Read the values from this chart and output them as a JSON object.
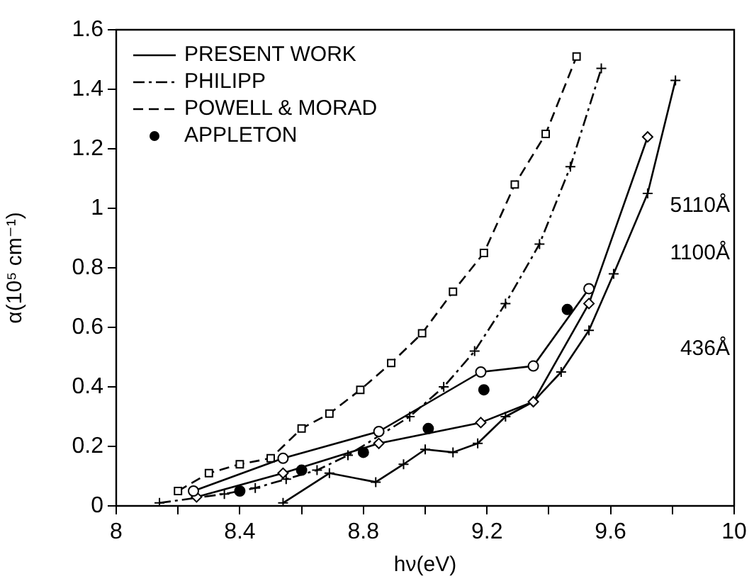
{
  "chart_data": {
    "type": "line",
    "xlabel": "hν(eV)",
    "ylabel": "α(10⁵ cm⁻¹)",
    "xlim": [
      8,
      10
    ],
    "ylim": [
      0,
      1.6
    ],
    "xticks": [
      8,
      {
        "value": 8.2,
        "label": null
      },
      8.4,
      {
        "value": 8.6,
        "label": null
      },
      8.8,
      {
        "value": 9,
        "label": null
      },
      9.2,
      {
        "value": 9.4,
        "label": null
      },
      9.6,
      {
        "value": 9.8,
        "label": null
      },
      10
    ],
    "yticks": [
      0,
      0.2,
      0.4,
      0.6,
      0.8,
      1.0,
      1.2,
      1.4,
      1.6
    ],
    "grid": false,
    "legend": "top left",
    "series": [
      {
        "name": "PRESENT WORK",
        "type": "line",
        "color": "#000000",
        "marker": "circle",
        "line_style": "solid",
        "x": [
          8.25,
          8.54,
          8.85,
          9.18,
          9.35,
          9.53
        ],
        "values": [
          0.05,
          0.16,
          0.25,
          0.45,
          0.47,
          0.73
        ]
      },
      {
        "type": "line",
        "color": "#000000",
        "marker": "diamond",
        "line_style": "solid",
        "x": [
          8.26,
          8.54,
          8.85,
          9.18,
          9.35,
          9.53,
          9.72
        ],
        "values": [
          0.03,
          0.11,
          0.21,
          0.28,
          0.35,
          0.68,
          1.24
        ]
      },
      {
        "type": "line",
        "color": "#000000",
        "marker": "cross",
        "line_style": "solid",
        "x": [
          8.54,
          8.69,
          8.84,
          8.93,
          9.0,
          9.09,
          9.17,
          9.26,
          9.35,
          9.44,
          9.53,
          9.61,
          9.72,
          9.81
        ],
        "values": [
          0.01,
          0.11,
          0.08,
          0.14,
          0.19,
          0.18,
          0.21,
          0.3,
          0.35,
          0.45,
          0.59,
          0.78,
          1.05,
          1.43
        ]
      },
      {
        "name": "PHILIPP",
        "type": "line",
        "color": "#000000",
        "marker": "cross",
        "line_style": "dashdot",
        "x": [
          8.14,
          8.35,
          8.45,
          8.55,
          8.65,
          8.75,
          8.95,
          9.06,
          9.16,
          9.26,
          9.37,
          9.47,
          9.57
        ],
        "values": [
          0.01,
          0.04,
          0.06,
          0.09,
          0.12,
          0.17,
          0.3,
          0.4,
          0.52,
          0.68,
          0.88,
          1.14,
          1.47
        ]
      },
      {
        "name": "POWELL & MORAD",
        "type": "line",
        "color": "#000000",
        "marker": "square",
        "line_style": "dashed",
        "x": [
          8.2,
          8.3,
          8.4,
          8.5,
          8.6,
          8.69,
          8.79,
          8.89,
          8.99,
          9.09,
          9.19,
          9.29,
          9.39,
          9.49
        ],
        "values": [
          0.05,
          0.11,
          0.14,
          0.16,
          0.26,
          0.31,
          0.39,
          0.48,
          0.58,
          0.72,
          0.85,
          1.08,
          1.25,
          1.51
        ]
      },
      {
        "name": "APPLETON",
        "type": "scatter",
        "color": "#000000",
        "marker": "circle",
        "x": [
          8.4,
          8.6,
          8.8,
          9.01,
          9.19,
          9.46
        ],
        "values": [
          0.05,
          0.12,
          0.18,
          0.26,
          0.39,
          0.66
        ]
      }
    ],
    "annotations": [
      "5110Å",
      "1100Å",
      "436Å"
    ]
  }
}
